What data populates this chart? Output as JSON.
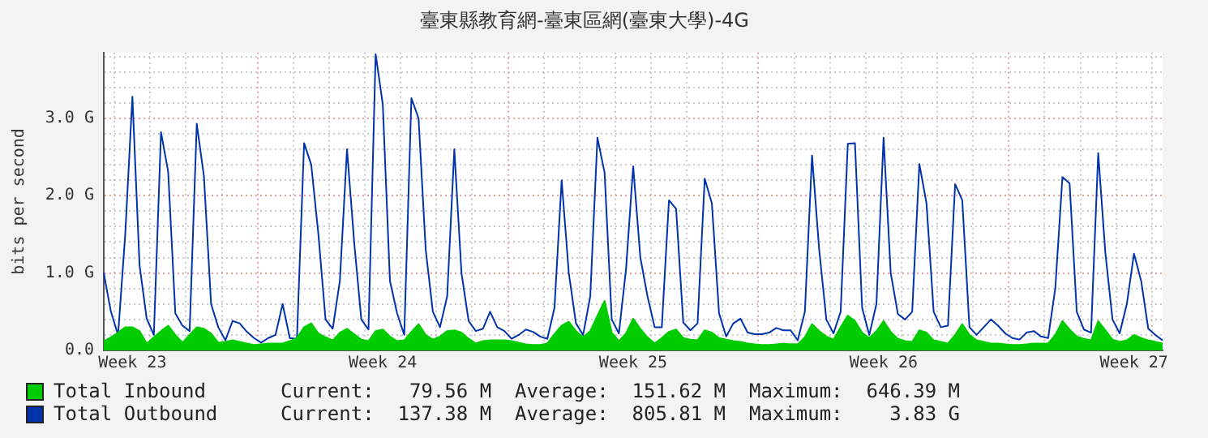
{
  "chart_data": {
    "type": "line",
    "title": "臺東縣教育網-臺東區網(臺東大學)-4G",
    "ylabel": "bits per second",
    "categories": [
      null,
      null,
      null,
      null,
      "Week 23",
      null,
      null,
      null,
      null,
      null,
      null,
      null,
      null,
      null,
      null,
      null,
      null,
      null,
      null,
      null,
      null,
      null,
      null,
      null,
      null,
      null,
      null,
      null,
      null,
      null,
      null,
      null,
      null,
      null,
      null,
      null,
      null,
      null,
      null,
      "Week 24",
      null,
      null,
      null,
      null,
      null,
      null,
      null,
      null,
      null,
      null,
      null,
      null,
      null,
      null,
      null,
      null,
      null,
      null,
      null,
      null,
      null,
      null,
      null,
      null,
      null,
      null,
      null,
      null,
      null,
      null,
      null,
      null,
      null,
      null,
      "Week 25",
      null,
      null,
      null,
      null,
      null,
      null,
      null,
      null,
      null,
      null,
      null,
      null,
      null,
      null,
      null,
      null,
      null,
      null,
      null,
      null,
      null,
      null,
      null,
      null,
      null,
      null,
      null,
      null,
      null,
      null,
      null,
      null,
      null,
      null,
      "Week 26",
      null,
      null,
      null,
      null,
      null,
      null,
      null,
      null,
      null,
      null,
      null,
      null,
      null,
      null,
      null,
      null,
      null,
      null,
      null,
      null,
      null,
      null,
      null,
      null,
      null,
      null,
      null,
      null,
      null,
      null,
      null,
      null,
      null,
      null,
      "Week 27",
      null,
      null,
      null,
      null
    ],
    "ylim": [
      0,
      3.85
    ],
    "yticks": [
      {
        "value": 0,
        "label": "0.0"
      },
      {
        "value": 0.2,
        "label": null
      },
      {
        "value": 0.4,
        "label": null
      },
      {
        "value": 0.6,
        "label": null
      },
      {
        "value": 0.8,
        "label": null
      },
      {
        "value": 1,
        "label": "1.0 G"
      },
      {
        "value": 1.2,
        "label": null
      },
      {
        "value": 1.4,
        "label": null
      },
      {
        "value": 1.6,
        "label": null
      },
      {
        "value": 1.8,
        "label": null
      },
      {
        "value": 2,
        "label": "2.0 G"
      },
      {
        "value": 2.2,
        "label": null
      },
      {
        "value": 2.4,
        "label": null
      },
      {
        "value": 2.6,
        "label": null
      },
      {
        "value": 2.8,
        "label": null
      },
      {
        "value": 3,
        "label": "3.0 G"
      },
      {
        "value": 3.2,
        "label": null
      },
      {
        "value": 3.4,
        "label": null
      },
      {
        "value": 3.6,
        "label": null
      },
      {
        "value": 3.8,
        "label": null
      }
    ],
    "grid": true,
    "legend": "bottom",
    "marker": "none",
    "annotations": [
      "Current:   79.56 M  Average:  151.62 M  Maximum:  646.39 M",
      "Current:  137.38 M  Average:  805.81 M  Maximum:    3.83 G"
    ],
    "series": [
      {
        "name": "Total Inbound",
        "type": "area",
        "color": "#00cc00",
        "values": [
          0.12,
          0.17,
          0.23,
          0.3,
          0.3,
          0.25,
          0.09,
          0.17,
          0.25,
          0.32,
          0.2,
          0.1,
          0.2,
          0.3,
          0.28,
          0.22,
          0.1,
          0.11,
          0.13,
          0.11,
          0.09,
          0.07,
          0.08,
          0.09,
          0.09,
          0.09,
          0.12,
          0.16,
          0.3,
          0.35,
          0.22,
          0.17,
          0.13,
          0.23,
          0.28,
          0.21,
          0.14,
          0.12,
          0.25,
          0.27,
          0.18,
          0.12,
          0.13,
          0.24,
          0.34,
          0.2,
          0.14,
          0.18,
          0.25,
          0.26,
          0.23,
          0.15,
          0.09,
          0.12,
          0.13,
          0.13,
          0.13,
          0.12,
          0.1,
          0.08,
          0.07,
          0.07,
          0.09,
          0.21,
          0.32,
          0.37,
          0.25,
          0.17,
          0.25,
          0.45,
          0.64,
          0.23,
          0.12,
          0.22,
          0.41,
          0.28,
          0.17,
          0.09,
          0.16,
          0.24,
          0.27,
          0.16,
          0.14,
          0.13,
          0.26,
          0.23,
          0.16,
          0.14,
          0.12,
          0.11,
          0.09,
          0.08,
          0.07,
          0.07,
          0.08,
          0.09,
          0.08,
          0.08,
          0.17,
          0.34,
          0.25,
          0.18,
          0.14,
          0.3,
          0.45,
          0.38,
          0.23,
          0.16,
          0.25,
          0.38,
          0.24,
          0.15,
          0.12,
          0.11,
          0.26,
          0.23,
          0.13,
          0.11,
          0.09,
          0.2,
          0.34,
          0.2,
          0.13,
          0.11,
          0.09,
          0.09,
          0.08,
          0.07,
          0.07,
          0.08,
          0.09,
          0.09,
          0.09,
          0.2,
          0.38,
          0.27,
          0.18,
          0.15,
          0.13,
          0.38,
          0.26,
          0.14,
          0.11,
          0.13,
          0.2,
          0.16,
          0.13,
          0.11,
          0.09
        ]
      },
      {
        "name": "Total Outbound",
        "color": "#0033aa",
        "values": [
          1.0,
          0.5,
          0.2,
          1.5,
          3.28,
          1.1,
          0.41,
          0.2,
          2.82,
          2.31,
          0.48,
          0.32,
          0.25,
          2.93,
          2.25,
          0.6,
          0.3,
          0.13,
          0.38,
          0.35,
          0.24,
          0.16,
          0.1,
          0.16,
          0.2,
          0.6,
          0.16,
          0.15,
          2.68,
          2.4,
          1.5,
          0.4,
          0.28,
          0.9,
          2.6,
          1.4,
          0.4,
          0.27,
          3.83,
          3.18,
          0.9,
          0.48,
          0.2,
          3.26,
          3.0,
          1.3,
          0.5,
          0.3,
          0.7,
          2.6,
          1.0,
          0.38,
          0.25,
          0.28,
          0.5,
          0.3,
          0.25,
          0.15,
          0.2,
          0.27,
          0.24,
          0.18,
          0.15,
          0.55,
          2.2,
          1.0,
          0.35,
          0.2,
          0.7,
          2.75,
          2.3,
          0.4,
          0.22,
          1.05,
          2.38,
          1.2,
          0.7,
          0.3,
          0.3,
          1.94,
          1.83,
          0.36,
          0.26,
          0.35,
          2.22,
          1.9,
          0.48,
          0.18,
          0.35,
          0.41,
          0.23,
          0.21,
          0.21,
          0.23,
          0.29,
          0.26,
          0.26,
          0.13,
          0.5,
          2.52,
          1.3,
          0.4,
          0.22,
          0.5,
          2.67,
          2.68,
          0.55,
          0.2,
          0.6,
          2.75,
          1.0,
          0.47,
          0.4,
          0.5,
          2.41,
          1.9,
          0.5,
          0.3,
          0.32,
          2.15,
          1.94,
          0.3,
          0.2,
          0.3,
          0.4,
          0.32,
          0.22,
          0.16,
          0.14,
          0.23,
          0.25,
          0.18,
          0.16,
          0.8,
          2.24,
          2.16,
          0.5,
          0.27,
          0.23,
          2.55,
          1.26,
          0.4,
          0.22,
          0.6,
          1.25,
          0.9,
          0.28,
          0.2,
          0.13
        ]
      }
    ]
  }
}
